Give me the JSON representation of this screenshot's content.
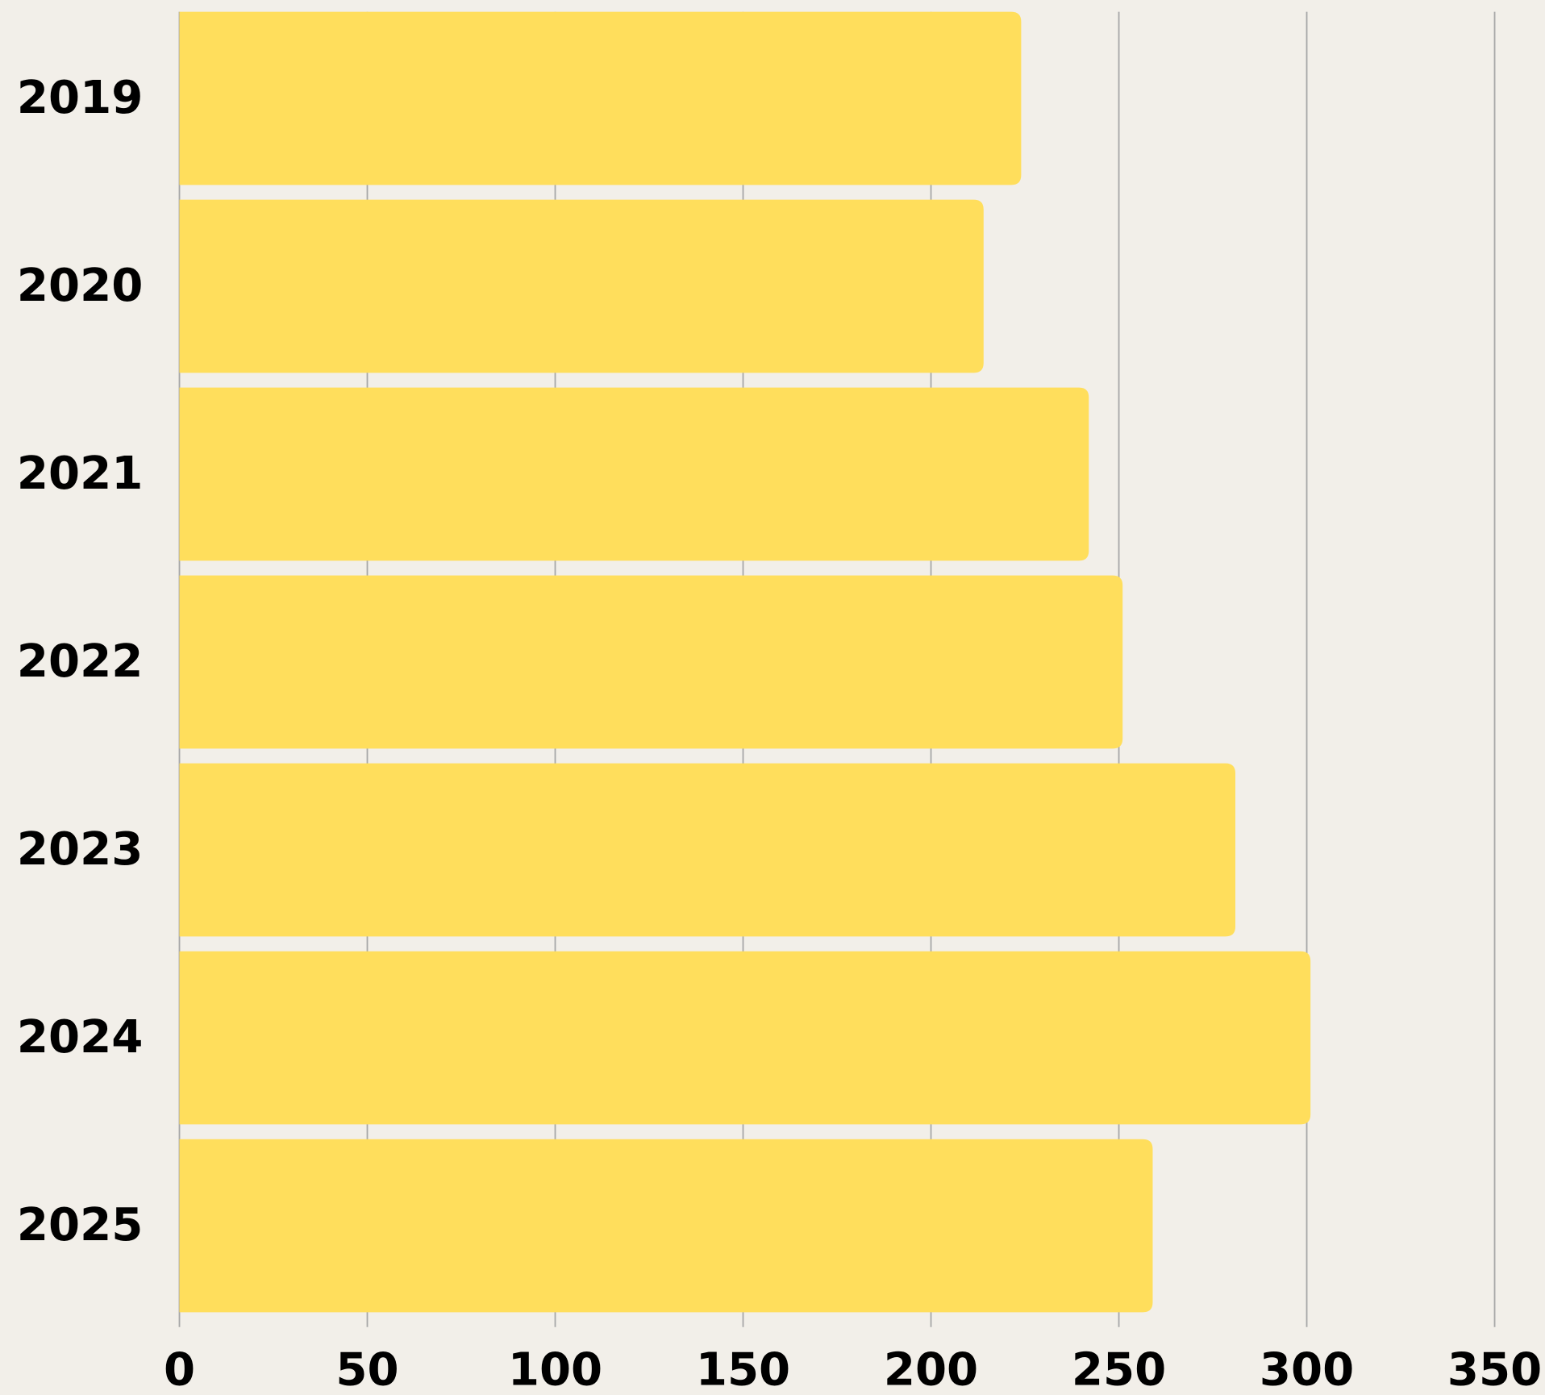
{
  "chart_data": {
    "type": "bar",
    "orientation": "horizontal",
    "categories": [
      "2019",
      "2020",
      "2021",
      "2022",
      "2023",
      "2024",
      "2025"
    ],
    "values": [
      224,
      214,
      242,
      251,
      281,
      301,
      259
    ],
    "color": "#ffde5c",
    "xlim": [
      0,
      350
    ],
    "xticks": [
      0,
      50,
      100,
      150,
      200,
      250,
      300,
      350
    ],
    "grid": true
  }
}
